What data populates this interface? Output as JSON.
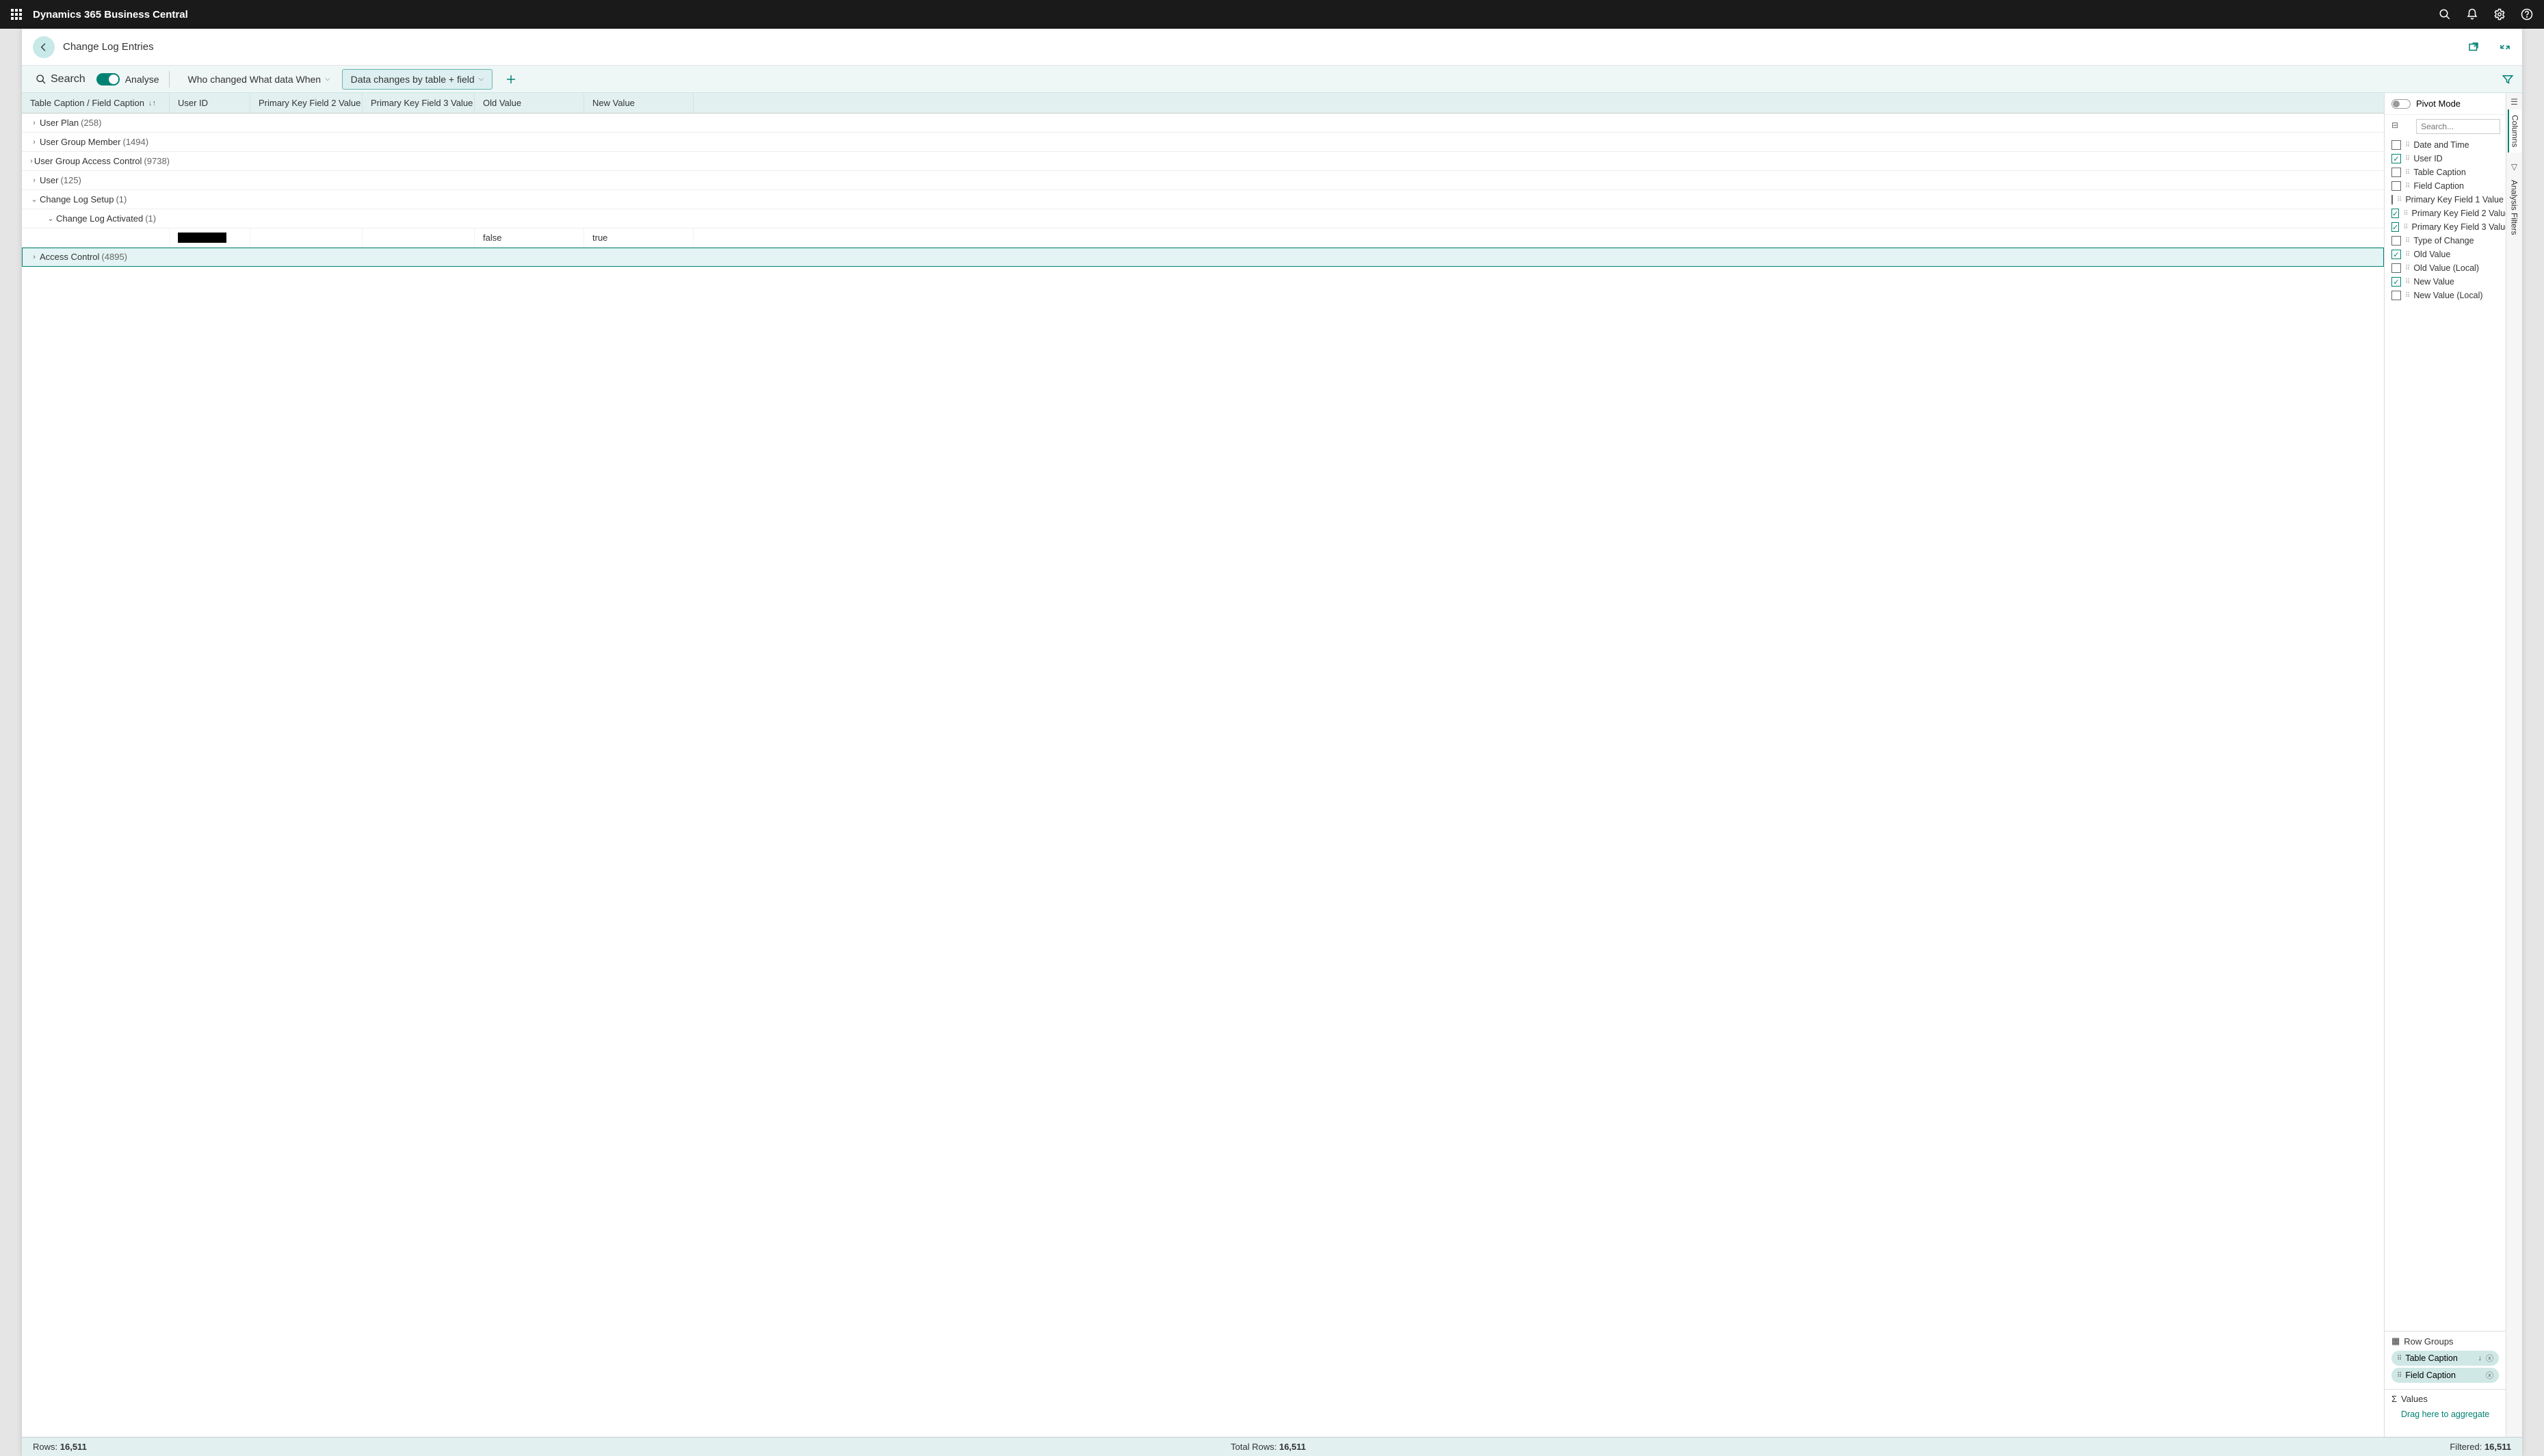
{
  "app_title": "Dynamics 365 Business Central",
  "page_title": "Change Log Entries",
  "toolbar": {
    "search_label": "Search",
    "analyse_label": "Analyse",
    "analyse_on": true,
    "tabs": [
      {
        "label": "Who changed What data When",
        "active": false
      },
      {
        "label": "Data changes by table + field",
        "active": true
      }
    ]
  },
  "columns": {
    "group": "Table Caption / Field Caption",
    "user_id": "User ID",
    "pk2": "Primary Key Field 2 Value",
    "pk3": "Primary Key Field 3 Value",
    "old": "Old Value",
    "new": "New Value"
  },
  "rows": [
    {
      "type": "group",
      "level": 1,
      "expanded": false,
      "label": "User Plan",
      "count": "(258)"
    },
    {
      "type": "group",
      "level": 1,
      "expanded": false,
      "label": "User Group Member",
      "count": "(1494)"
    },
    {
      "type": "group",
      "level": 1,
      "expanded": false,
      "label": "User Group Access Control",
      "count": "(9738)"
    },
    {
      "type": "group",
      "level": 1,
      "expanded": false,
      "label": "User",
      "count": "(125)"
    },
    {
      "type": "group",
      "level": 1,
      "expanded": true,
      "label": "Change Log Setup",
      "count": "(1)"
    },
    {
      "type": "group",
      "level": 2,
      "expanded": true,
      "label": "Change Log Activated",
      "count": "(1)"
    },
    {
      "type": "data",
      "user_id": "REDACTED",
      "pk2": "",
      "pk3": "",
      "old": "false",
      "new": "true"
    },
    {
      "type": "group",
      "level": 1,
      "expanded": false,
      "label": "Access Control",
      "count": "(4895)",
      "selected": true
    }
  ],
  "side": {
    "pivot_label": "Pivot Mode",
    "search_placeholder": "Search...",
    "columns": [
      {
        "label": "Date and Time",
        "checked": false
      },
      {
        "label": "User ID",
        "checked": true
      },
      {
        "label": "Table Caption",
        "checked": false
      },
      {
        "label": "Field Caption",
        "checked": false
      },
      {
        "label": "Primary Key Field 1 Value",
        "checked": false
      },
      {
        "label": "Primary Key Field 2 Value",
        "checked": true
      },
      {
        "label": "Primary Key Field 3 Value",
        "checked": true
      },
      {
        "label": "Type of Change",
        "checked": false
      },
      {
        "label": "Old Value",
        "checked": true
      },
      {
        "label": "Old Value (Local)",
        "checked": false
      },
      {
        "label": "New Value",
        "checked": true
      },
      {
        "label": "New Value (Local)",
        "checked": false
      }
    ],
    "row_groups_label": "Row Groups",
    "row_groups": [
      {
        "label": "Table Caption",
        "sort": true
      },
      {
        "label": "Field Caption",
        "sort": false
      }
    ],
    "values_label": "Values",
    "values_hint": "Drag here to aggregate",
    "vtabs": {
      "columns": "Columns",
      "filters": "Analysis Filters"
    }
  },
  "status": {
    "rows_label": "Rows:",
    "rows_value": "16,511",
    "total_label": "Total Rows:",
    "total_value": "16,511",
    "filtered_label": "Filtered:",
    "filtered_value": "16,511"
  }
}
